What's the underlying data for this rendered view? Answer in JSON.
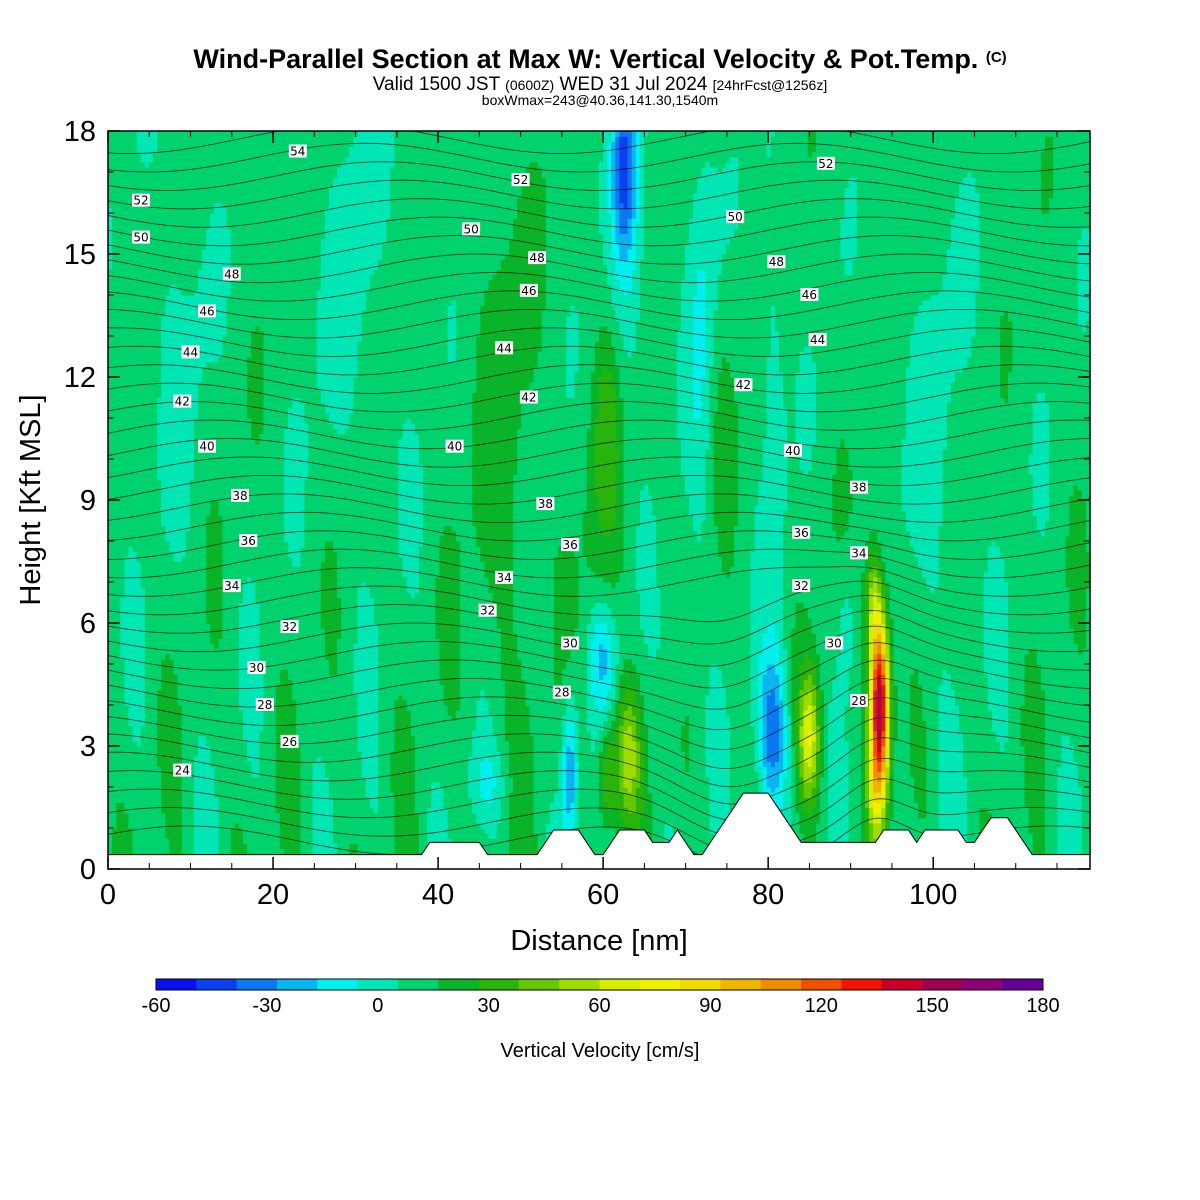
{
  "title": {
    "main": "Wind-Parallel Section at Max W: Vertical Velocity & Pot.Temp.",
    "main_tag": "(C)",
    "valid_prefix": "Valid 1500 JST",
    "valid_utc": "(0600Z)",
    "valid_date": "WED 31 Jul 2024",
    "fcst": "[24hrFcst@1256z]",
    "boxmax": "boxWmax=243@40.36,141.30,1540m"
  },
  "chart_data": {
    "type": "contour",
    "xlabel": "Distance [nm]",
    "ylabel": "Height [Kft MSL]",
    "xlim": [
      0,
      119
    ],
    "ylim": [
      0,
      18
    ],
    "x_ticks": [
      0,
      20,
      40,
      60,
      80,
      100
    ],
    "y_ticks": [
      0,
      3,
      6,
      9,
      12,
      15,
      18
    ],
    "x_tick_labels": [
      "0",
      "20",
      "40",
      "60",
      "80",
      "100"
    ],
    "y_tick_labels": [
      "0",
      "3",
      "6",
      "9",
      "12",
      "15",
      "18"
    ],
    "colorbar": {
      "label": "Vertical Velocity [cm/s]",
      "tick_values": [
        -60,
        -30,
        0,
        30,
        60,
        90,
        120,
        150,
        180
      ],
      "tick_labels": [
        "-60",
        "-30",
        "0",
        "30",
        "60",
        "90",
        "120",
        "150",
        "180"
      ],
      "colors": [
        "#0a10f0",
        "#0a40f0",
        "#0a78f0",
        "#0ab4f0",
        "#00f0f0",
        "#00e6b4",
        "#00d26e",
        "#0ab428",
        "#28b40a",
        "#64c800",
        "#a0dc00",
        "#d2f000",
        "#f0f000",
        "#f0dc00",
        "#f0b400",
        "#f08c00",
        "#f05000",
        "#f01400",
        "#c80028",
        "#a00050",
        "#8c0078",
        "#640096"
      ]
    },
    "terrain": [
      [
        0,
        0.35
      ],
      [
        38,
        0.35
      ],
      [
        39,
        0.65
      ],
      [
        45,
        0.65
      ],
      [
        46,
        0.35
      ],
      [
        52,
        0.35
      ],
      [
        53,
        0.65
      ],
      [
        54,
        0.95
      ],
      [
        57,
        0.95
      ],
      [
        58,
        0.65
      ],
      [
        59,
        0.35
      ],
      [
        60,
        0.35
      ],
      [
        61,
        0.65
      ],
      [
        62,
        0.95
      ],
      [
        65,
        0.95
      ],
      [
        66,
        0.65
      ],
      [
        68,
        0.65
      ],
      [
        69,
        0.95
      ],
      [
        70,
        0.65
      ],
      [
        71,
        0.35
      ],
      [
        72,
        0.35
      ],
      [
        73,
        0.65
      ],
      [
        74,
        0.95
      ],
      [
        75,
        1.25
      ],
      [
        76,
        1.55
      ],
      [
        77,
        1.85
      ],
      [
        80,
        1.85
      ],
      [
        81,
        1.55
      ],
      [
        82,
        1.25
      ],
      [
        83,
        0.95
      ],
      [
        84,
        0.65
      ],
      [
        86,
        0.65
      ],
      [
        93,
        0.65
      ],
      [
        94,
        0.95
      ],
      [
        97,
        0.95
      ],
      [
        98,
        0.65
      ],
      [
        99,
        0.95
      ],
      [
        103,
        0.95
      ],
      [
        104,
        0.65
      ],
      [
        105,
        0.65
      ],
      [
        106,
        0.95
      ],
      [
        107,
        1.25
      ],
      [
        109,
        1.25
      ],
      [
        110,
        0.95
      ],
      [
        111,
        0.65
      ],
      [
        112,
        0.35
      ],
      [
        119,
        0.35
      ]
    ],
    "theta_labels": [
      {
        "x": 23,
        "y": 17.5,
        "text": "54"
      },
      {
        "x": 4,
        "y": 16.3,
        "text": "52"
      },
      {
        "x": 50,
        "y": 16.8,
        "text": "52"
      },
      {
        "x": 87,
        "y": 17.2,
        "text": "52"
      },
      {
        "x": 4,
        "y": 15.4,
        "text": "50"
      },
      {
        "x": 44,
        "y": 15.6,
        "text": "50"
      },
      {
        "x": 76,
        "y": 15.9,
        "text": "50"
      },
      {
        "x": 15,
        "y": 14.5,
        "text": "48"
      },
      {
        "x": 52,
        "y": 14.9,
        "text": "48"
      },
      {
        "x": 81,
        "y": 14.8,
        "text": "48"
      },
      {
        "x": 12,
        "y": 13.6,
        "text": "46"
      },
      {
        "x": 51,
        "y": 14.1,
        "text": "46"
      },
      {
        "x": 85,
        "y": 14.0,
        "text": "46"
      },
      {
        "x": 10,
        "y": 12.6,
        "text": "44"
      },
      {
        "x": 48,
        "y": 12.7,
        "text": "44"
      },
      {
        "x": 86,
        "y": 12.9,
        "text": "44"
      },
      {
        "x": 9,
        "y": 11.4,
        "text": "42"
      },
      {
        "x": 51,
        "y": 11.5,
        "text": "42"
      },
      {
        "x": 77,
        "y": 11.8,
        "text": "42"
      },
      {
        "x": 12,
        "y": 10.3,
        "text": "40"
      },
      {
        "x": 42,
        "y": 10.3,
        "text": "40"
      },
      {
        "x": 83,
        "y": 10.2,
        "text": "40"
      },
      {
        "x": 16,
        "y": 9.1,
        "text": "38"
      },
      {
        "x": 53,
        "y": 8.9,
        "text": "38"
      },
      {
        "x": 91,
        "y": 9.3,
        "text": "38"
      },
      {
        "x": 17,
        "y": 8.0,
        "text": "36"
      },
      {
        "x": 56,
        "y": 7.9,
        "text": "36"
      },
      {
        "x": 84,
        "y": 8.2,
        "text": "36"
      },
      {
        "x": 15,
        "y": 6.9,
        "text": "34"
      },
      {
        "x": 48,
        "y": 7.1,
        "text": "34"
      },
      {
        "x": 91,
        "y": 7.7,
        "text": "34"
      },
      {
        "x": 22,
        "y": 5.9,
        "text": "32"
      },
      {
        "x": 46,
        "y": 6.3,
        "text": "32"
      },
      {
        "x": 84,
        "y": 6.9,
        "text": "32"
      },
      {
        "x": 18,
        "y": 4.9,
        "text": "30"
      },
      {
        "x": 56,
        "y": 5.5,
        "text": "30"
      },
      {
        "x": 88,
        "y": 5.5,
        "text": "30"
      },
      {
        "x": 19,
        "y": 4.0,
        "text": "28"
      },
      {
        "x": 55,
        "y": 4.3,
        "text": "28"
      },
      {
        "x": 91,
        "y": 4.1,
        "text": "28"
      },
      {
        "x": 22,
        "y": 3.1,
        "text": "26"
      },
      {
        "x": 9,
        "y": 2.4,
        "text": "24"
      }
    ]
  }
}
